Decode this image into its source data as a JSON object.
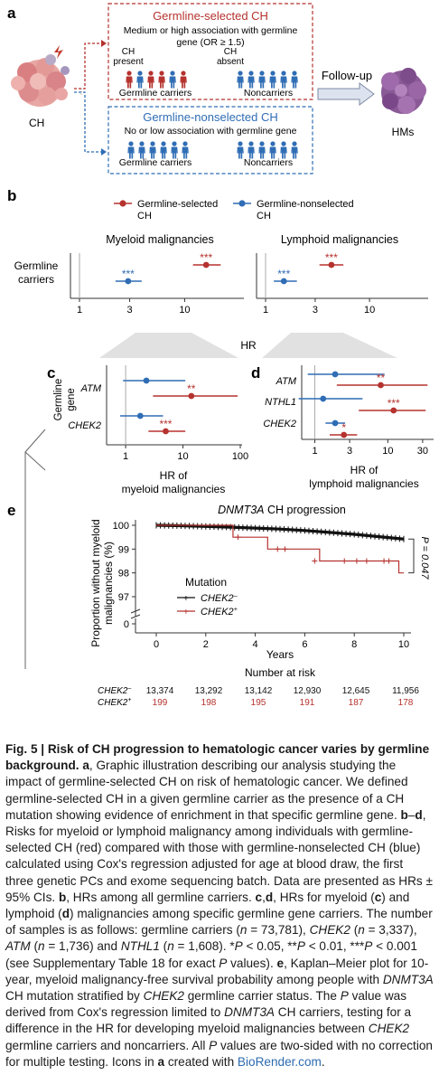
{
  "colors": {
    "red": "#b5322e",
    "blue": "#2f6db5",
    "gray": "#888888",
    "black": "#111111"
  },
  "panel_a": {
    "label": "a",
    "ch_label": "CH",
    "hms_label": "HMs",
    "followup": "Follow-up",
    "selected": {
      "title": "Germline-selected CH",
      "desc1": "Medium or high association with germline",
      "desc2": "gene (OR ≥ 1.5)",
      "ch_present1": "CH",
      "ch_present2": "present",
      "ch_absent1": "CH",
      "ch_absent2": "absent",
      "carriers": "Germline carriers",
      "noncarriers": "Noncarriers"
    },
    "nonselected": {
      "title": "Germline-nonselected CH",
      "desc": "No or low association with germline gene",
      "carriers": "Germline carriers",
      "noncarriers": "Noncarriers"
    }
  },
  "panel_b": {
    "label": "b",
    "legend": [
      {
        "name1": "Germline-selected",
        "name2": "CH",
        "color": "red"
      },
      {
        "name1": "Germline-nonselected",
        "name2": "CH",
        "color": "blue"
      }
    ],
    "myeloid_title": "Myeloid malignancies",
    "lymphoid_title": "Lymphoid malignancies",
    "row_label1": "Germline",
    "row_label2": "carriers",
    "xlabel": "HR",
    "ticks": [
      "1",
      "3",
      "10"
    ],
    "sig": "***"
  },
  "panel_c": {
    "label": "c",
    "gene_label1": "Germline",
    "gene_label2": "gene",
    "genes": [
      "ATM",
      "CHEK2"
    ],
    "ticks": [
      "1",
      "10",
      "100"
    ],
    "xlabel1": "HR of",
    "xlabel2": "myeloid malignancies",
    "sig_atm": "**",
    "sig_chek2": "***"
  },
  "panel_d": {
    "label": "d",
    "genes": [
      "ATM",
      "NTHL1",
      "CHEK2"
    ],
    "ticks": [
      "1",
      "3",
      "10",
      "30"
    ],
    "xlabel1": "HR of",
    "xlabel2": "lymphoid malignancies",
    "sig_atm": "**",
    "sig_nthl1": "***",
    "sig_chek2": "*"
  },
  "panel_e": {
    "label": "e",
    "title_gene": "DNMT3A",
    "title_rest": " CH progression",
    "ylabel1": "Proportion without myeloid",
    "ylabel2": "malignancies (%)",
    "yticks": [
      "100",
      "99",
      "98",
      "97",
      "0"
    ],
    "xticks": [
      "0",
      "2",
      "4",
      "6",
      "8",
      "10"
    ],
    "xlabel": "Years",
    "pvalue": "P = 0.047",
    "legend_title": "Mutation",
    "legend": [
      {
        "gene": "CHEK2",
        "sup": "–"
      },
      {
        "gene": "CHEK2",
        "sup": "+"
      }
    ],
    "risk_title": "Number at risk",
    "risk": [
      {
        "gene": "CHEK2",
        "sup": "–",
        "values": [
          "13,374",
          "13,292",
          "13,142",
          "12,930",
          "12,645",
          "11,956"
        ]
      },
      {
        "gene": "CHEK2",
        "sup": "+",
        "values": [
          "199",
          "198",
          "195",
          "191",
          "187",
          "178"
        ]
      }
    ]
  },
  "chart_data": [
    {
      "type": "scatter",
      "panel": "b-myeloid",
      "xscale": "log",
      "xlim": [
        1,
        30
      ],
      "series": [
        {
          "name": "Germline-selected CH",
          "hr": 16,
          "ci": [
            12,
            22
          ]
        },
        {
          "name": "Germline-nonselected CH",
          "hr": 2.9,
          "ci": [
            2.2,
            3.9
          ]
        }
      ]
    },
    {
      "type": "scatter",
      "panel": "b-lymphoid",
      "xscale": "log",
      "xlim": [
        1,
        30
      ],
      "series": [
        {
          "name": "Germline-selected CH",
          "hr": 4.3,
          "ci": [
            3.3,
            5.6
          ]
        },
        {
          "name": "Germline-nonselected CH",
          "hr": 1.5,
          "ci": [
            1.2,
            2.0
          ]
        }
      ]
    },
    {
      "type": "scatter",
      "panel": "c",
      "xscale": "log",
      "xlim": [
        0.5,
        100
      ],
      "rows": [
        {
          "gene": "ATM",
          "selected": {
            "hr": 14,
            "ci": [
              3,
              90
            ]
          },
          "nonselected": {
            "hr": 2.3,
            "ci": [
              0.9,
              11
            ]
          }
        },
        {
          "gene": "CHEK2",
          "selected": {
            "hr": 5,
            "ci": [
              2.5,
              11
            ]
          },
          "nonselected": {
            "hr": 1.8,
            "ci": [
              0.8,
              4.5
            ]
          }
        }
      ]
    },
    {
      "type": "scatter",
      "panel": "d",
      "xscale": "log",
      "xlim": [
        0.7,
        40
      ],
      "rows": [
        {
          "gene": "ATM",
          "selected": {
            "hr": 8,
            "ci": [
              2,
              35
            ]
          },
          "nonselected": {
            "hr": 1.9,
            "ci": [
              0.8,
              9
            ]
          }
        },
        {
          "gene": "NTHL1",
          "selected": {
            "hr": 12,
            "ci": [
              4,
              33
            ]
          },
          "nonselected": {
            "hr": 1.3,
            "ci": [
              0.6,
              4.5
            ]
          }
        },
        {
          "gene": "CHEK2",
          "selected": {
            "hr": 2.5,
            "ci": [
              1.6,
              3.8
            ]
          },
          "nonselected": {
            "hr": 1.9,
            "ci": [
              1.4,
              2.6
            ]
          }
        }
      ]
    },
    {
      "type": "line",
      "panel": "e",
      "xlabel": "Years",
      "ylabel": "Proportion without myeloid malignancies (%)",
      "ylim": [
        97,
        100
      ],
      "xlim": [
        0,
        10
      ],
      "series": [
        {
          "name": "CHEK2-",
          "x": [
            0,
            1,
            2,
            3,
            4,
            5,
            6,
            7,
            8,
            9,
            10
          ],
          "y": [
            100,
            99.98,
            99.95,
            99.92,
            99.88,
            99.84,
            99.78,
            99.7,
            99.62,
            99.52,
            99.42
          ]
        },
        {
          "name": "CHEK2+",
          "x": [
            0,
            3.1,
            3.1,
            4.5,
            4.5,
            6.6,
            6.6,
            9.8,
            9.8,
            10
          ],
          "y": [
            100,
            100,
            99.5,
            99.5,
            99.0,
            99.0,
            98.5,
            98.5,
            98.0,
            98.0
          ]
        }
      ]
    }
  ],
  "caption_html": "<b>Fig. 5 | Risk of CH progression to hematologic cancer varies by germline background.</b> <b>a</b>, Graphic illustration describing our analysis studying the impact of germline-selected CH on risk of hematologic cancer. We defined germline-selected CH in a given germline carrier as the presence of a CH mutation showing evidence of enrichment in that specific germline gene. <b>b</b>–<b>d</b>, Risks for myeloid or lymphoid malignancy among individuals with germline-selected CH (red) compared with those with germline-nonselected CH (blue) calculated using Cox's regression adjusted for age at blood draw, the first three genetic PCs and exome sequencing batch. Data are presented as HRs ± 95% CIs. <b>b</b>, HRs among all germline carriers. <b>c</b>,<b>d</b>, HRs for myeloid (<b>c</b>) and lymphoid (<b>d</b>) malignancies among specific germline gene carriers. The number of samples is as follows: germline carriers (<i>n</i> = 73,781), <i>CHEK2</i> (<i>n</i> = 3,337), <i>ATM</i> (<i>n</i> = 1,736) and <i>NTHL1</i> (<i>n</i> = 1,608). *<i>P</i> &lt; 0.05, **<i>P</i> &lt; 0.01, ***<i>P</i> &lt; 0.001 (see Supplementary Table 18 for exact <i>P</i> values). <b>e</b>, Kaplan–Meier plot for 10-year, myeloid malignancy-free survival probability among people with <i>DNMT3A</i> CH mutation stratified by <i>CHEK2</i> germline carrier status. The <i>P</i> value was derived from Cox's regression limited to <i>DNMT3A</i> CH carriers, testing for a difference in the HR for developing myeloid malignancies between <i>CHEK2</i> germline carriers and noncarriers. All <i>P</i> values are two-sided with no correction for multiple testing. Icons in <b>a</b> created with <span class=\"link\">BioRender.com</span>."
}
